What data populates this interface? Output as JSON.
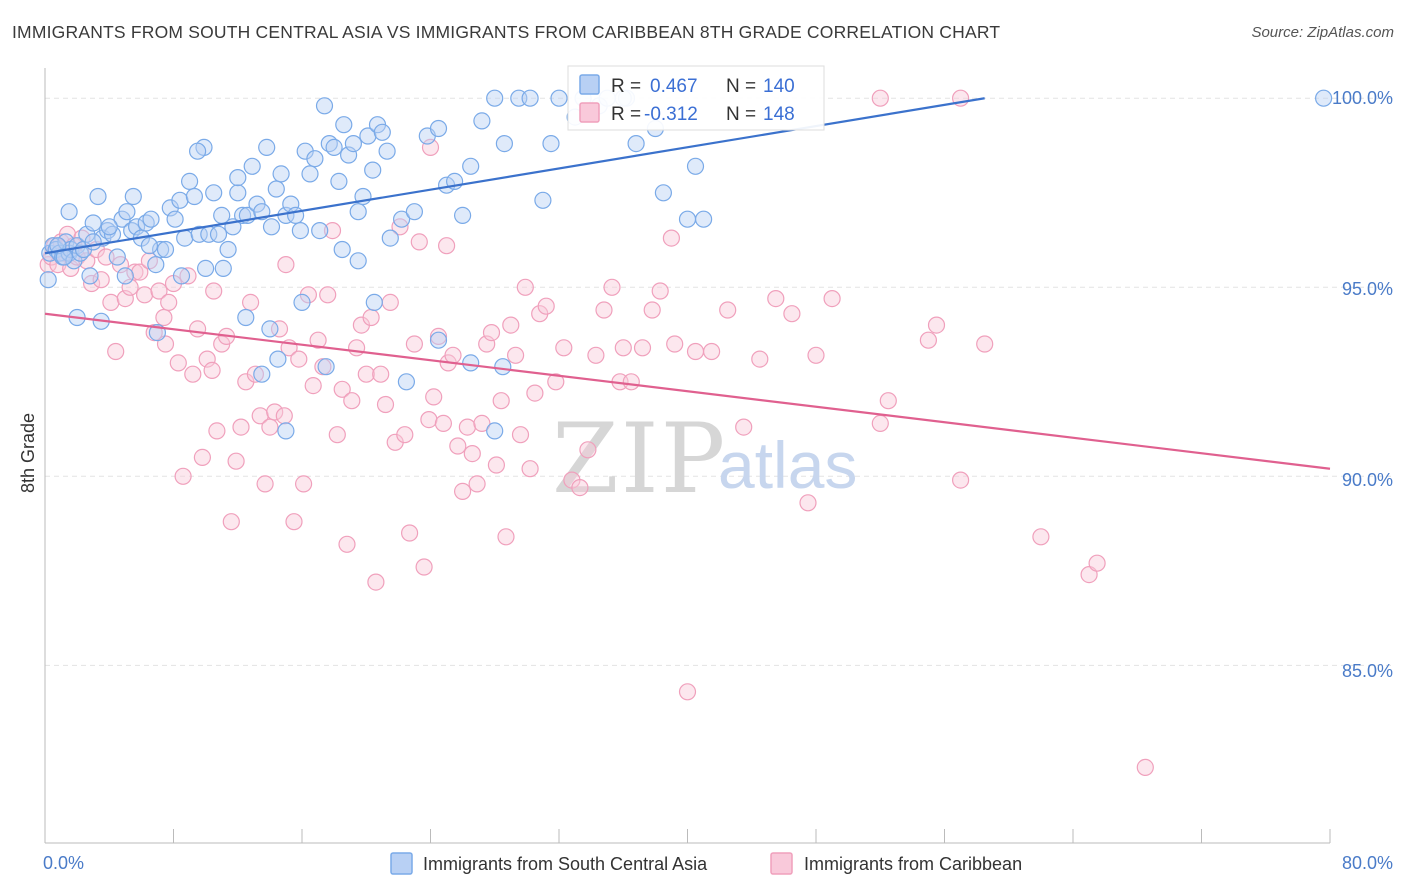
{
  "title": "IMMIGRANTS FROM SOUTH CENTRAL ASIA VS IMMIGRANTS FROM CARIBBEAN 8TH GRADE CORRELATION CHART",
  "source": "Source: ZipAtlas.com",
  "watermark": {
    "zip": "ZIP",
    "atlas": "atlas"
  },
  "colors": {
    "blue": "#7aaae8",
    "blue_line": "#3b72cc",
    "pink": "#f0a0bc",
    "pink_line": "#e0608f",
    "tick_text": "#4a7bc8",
    "grid": "#e3e3e3"
  },
  "legend": {
    "rows": [
      {
        "r_label": "R =",
        "r_value": "0.467",
        "n_label": "N =",
        "n_value": "140"
      },
      {
        "r_label": "R =",
        "r_value": "-0.312",
        "n_label": "N =",
        "n_value": "148"
      }
    ]
  },
  "chart_data": {
    "type": "scatter",
    "title": "IMMIGRANTS FROM SOUTH CENTRAL ASIA VS IMMIGRANTS FROM CARIBBEAN 8TH GRADE CORRELATION CHART",
    "xlabel": "",
    "ylabel": "8th Grade",
    "xlim": [
      0,
      80
    ],
    "ylim": [
      80.3,
      100.8
    ],
    "x_tick_labels": [
      "0.0%",
      "80.0%"
    ],
    "y_ticks": [
      85,
      90,
      95,
      100
    ],
    "y_tick_labels": [
      "85.0%",
      "90.0%",
      "95.0%",
      "100.0%"
    ],
    "grid": true,
    "legend_position": "top-center",
    "series": [
      {
        "name": "Immigrants from South Central Asia",
        "color": "#7aaae8",
        "trend": {
          "x0": 0,
          "y0": 95.9,
          "x1": 58.5,
          "y1": 100.0
        },
        "points": [
          [
            0.2,
            95.2
          ],
          [
            0.3,
            95.9
          ],
          [
            0.5,
            96.1
          ],
          [
            0.7,
            96.0
          ],
          [
            0.9,
            95.9
          ],
          [
            1.1,
            95.8
          ],
          [
            1.3,
            96.2
          ],
          [
            1.5,
            95.9
          ],
          [
            1.6,
            96.0
          ],
          [
            1.8,
            95.7
          ],
          [
            2.0,
            96.1
          ],
          [
            2.2,
            95.9
          ],
          [
            2.4,
            96.0
          ],
          [
            2.6,
            96.4
          ],
          [
            2.8,
            95.3
          ],
          [
            3.0,
            96.7
          ],
          [
            3.3,
            97.4
          ],
          [
            3.6,
            96.3
          ],
          [
            3.9,
            96.5
          ],
          [
            4.2,
            96.4
          ],
          [
            4.5,
            95.8
          ],
          [
            4.8,
            96.8
          ],
          [
            5.1,
            97.0
          ],
          [
            5.4,
            96.5
          ],
          [
            5.7,
            96.6
          ],
          [
            6.0,
            96.3
          ],
          [
            6.3,
            96.7
          ],
          [
            6.6,
            96.8
          ],
          [
            6.9,
            95.6
          ],
          [
            7.2,
            96.0
          ],
          [
            7.5,
            96.0
          ],
          [
            7.8,
            97.1
          ],
          [
            8.1,
            96.8
          ],
          [
            8.4,
            97.3
          ],
          [
            8.7,
            96.3
          ],
          [
            9.0,
            97.8
          ],
          [
            9.3,
            97.4
          ],
          [
            9.6,
            96.4
          ],
          [
            9.9,
            98.7
          ],
          [
            10.2,
            96.4
          ],
          [
            10.5,
            97.5
          ],
          [
            10.8,
            96.4
          ],
          [
            11.1,
            95.5
          ],
          [
            11.4,
            96.0
          ],
          [
            11.7,
            96.6
          ],
          [
            12.0,
            97.5
          ],
          [
            12.3,
            96.9
          ],
          [
            12.6,
            96.9
          ],
          [
            12.9,
            98.2
          ],
          [
            13.2,
            97.2
          ],
          [
            13.5,
            97.0
          ],
          [
            13.8,
            98.7
          ],
          [
            14.1,
            96.6
          ],
          [
            14.4,
            97.6
          ],
          [
            14.7,
            98.0
          ],
          [
            15.0,
            96.9
          ],
          [
            15.3,
            97.2
          ],
          [
            15.6,
            96.9
          ],
          [
            15.9,
            96.5
          ],
          [
            16.2,
            98.6
          ],
          [
            16.5,
            98.0
          ],
          [
            16.8,
            98.4
          ],
          [
            17.1,
            96.5
          ],
          [
            17.4,
            99.8
          ],
          [
            17.7,
            98.8
          ],
          [
            18.0,
            98.7
          ],
          [
            18.3,
            97.8
          ],
          [
            18.6,
            99.3
          ],
          [
            18.9,
            98.5
          ],
          [
            19.2,
            98.8
          ],
          [
            19.5,
            97.0
          ],
          [
            19.8,
            97.4
          ],
          [
            20.1,
            99.0
          ],
          [
            20.4,
            98.1
          ],
          [
            20.7,
            99.3
          ],
          [
            21.0,
            99.1
          ],
          [
            21.3,
            98.6
          ],
          [
            22.2,
            96.8
          ],
          [
            23.0,
            97.0
          ],
          [
            23.8,
            99.0
          ],
          [
            24.5,
            99.2
          ],
          [
            25.0,
            97.7
          ],
          [
            25.5,
            97.8
          ],
          [
            26.0,
            96.9
          ],
          [
            26.5,
            98.2
          ],
          [
            27.2,
            99.4
          ],
          [
            28.0,
            100.0
          ],
          [
            28.6,
            98.8
          ],
          [
            29.5,
            100.0
          ],
          [
            30.2,
            100.0
          ],
          [
            31.0,
            97.3
          ],
          [
            31.5,
            98.8
          ],
          [
            32.0,
            100.0
          ],
          [
            33.0,
            99.5
          ],
          [
            33.5,
            100.0
          ],
          [
            34.5,
            99.8
          ],
          [
            35.0,
            100.0
          ],
          [
            36.2,
            100.0
          ],
          [
            36.8,
            98.8
          ],
          [
            38.0,
            99.2
          ],
          [
            38.5,
            97.5
          ],
          [
            40.0,
            96.8
          ],
          [
            40.5,
            98.2
          ],
          [
            41.0,
            96.8
          ],
          [
            1.5,
            97.0
          ],
          [
            2.0,
            94.2
          ],
          [
            3.5,
            94.1
          ],
          [
            5.0,
            95.3
          ],
          [
            7.0,
            93.8
          ],
          [
            10.0,
            95.5
          ],
          [
            12.5,
            94.2
          ],
          [
            14.0,
            93.9
          ],
          [
            13.5,
            92.7
          ],
          [
            14.5,
            93.1
          ],
          [
            15.0,
            91.2
          ],
          [
            17.5,
            92.9
          ],
          [
            19.5,
            95.7
          ],
          [
            20.5,
            94.6
          ],
          [
            21.5,
            96.3
          ],
          [
            24.5,
            93.6
          ],
          [
            26.5,
            93.0
          ],
          [
            28.5,
            92.9
          ],
          [
            28.0,
            91.2
          ],
          [
            22.5,
            92.5
          ],
          [
            5.5,
            97.4
          ],
          [
            8.5,
            95.3
          ],
          [
            11.0,
            96.9
          ],
          [
            16.0,
            94.6
          ],
          [
            18.5,
            96.0
          ],
          [
            12.0,
            97.9
          ],
          [
            9.5,
            98.6
          ],
          [
            3.0,
            96.2
          ],
          [
            4.0,
            96.6
          ],
          [
            6.5,
            96.1
          ],
          [
            36.0,
            100.0
          ],
          [
            79.6,
            100.0
          ],
          [
            0.8,
            96.1
          ],
          [
            1.2,
            95.8
          ]
        ]
      },
      {
        "name": "Immigrants from Caribbean",
        "color": "#f0a0bc",
        "trend": {
          "x0": 0,
          "y0": 94.3,
          "x1": 80,
          "y1": 90.2
        },
        "points": [
          [
            0.2,
            95.6
          ],
          [
            0.4,
            95.8
          ],
          [
            0.6,
            96.1
          ],
          [
            0.8,
            95.6
          ],
          [
            1.0,
            96.2
          ],
          [
            1.2,
            95.9
          ],
          [
            1.4,
            96.4
          ],
          [
            1.6,
            95.5
          ],
          [
            1.8,
            96.1
          ],
          [
            2.0,
            95.8
          ],
          [
            2.3,
            96.3
          ],
          [
            2.6,
            95.7
          ],
          [
            2.9,
            95.1
          ],
          [
            3.2,
            96.0
          ],
          [
            3.5,
            95.2
          ],
          [
            3.8,
            95.8
          ],
          [
            4.1,
            94.6
          ],
          [
            4.4,
            93.3
          ],
          [
            4.7,
            95.6
          ],
          [
            5.0,
            94.7
          ],
          [
            5.3,
            95.0
          ],
          [
            5.6,
            95.4
          ],
          [
            5.9,
            95.4
          ],
          [
            6.2,
            94.8
          ],
          [
            6.5,
            95.7
          ],
          [
            6.8,
            93.8
          ],
          [
            7.1,
            94.9
          ],
          [
            7.4,
            94.2
          ],
          [
            7.7,
            94.6
          ],
          [
            8.0,
            95.1
          ],
          [
            8.3,
            93.0
          ],
          [
            8.6,
            90.0
          ],
          [
            8.9,
            95.3
          ],
          [
            9.2,
            92.7
          ],
          [
            9.5,
            93.9
          ],
          [
            9.8,
            90.5
          ],
          [
            10.1,
            93.1
          ],
          [
            10.4,
            92.8
          ],
          [
            10.7,
            91.2
          ],
          [
            11.0,
            93.5
          ],
          [
            11.3,
            93.7
          ],
          [
            11.6,
            88.8
          ],
          [
            11.9,
            90.4
          ],
          [
            12.2,
            91.3
          ],
          [
            12.5,
            92.5
          ],
          [
            12.8,
            94.6
          ],
          [
            13.1,
            92.7
          ],
          [
            13.4,
            91.6
          ],
          [
            13.7,
            89.8
          ],
          [
            14.0,
            91.3
          ],
          [
            14.3,
            91.7
          ],
          [
            14.6,
            93.9
          ],
          [
            14.9,
            91.6
          ],
          [
            15.2,
            93.4
          ],
          [
            15.5,
            88.8
          ],
          [
            15.8,
            93.1
          ],
          [
            16.1,
            89.8
          ],
          [
            16.4,
            94.8
          ],
          [
            16.7,
            92.4
          ],
          [
            17.0,
            93.6
          ],
          [
            17.3,
            92.9
          ],
          [
            17.6,
            94.8
          ],
          [
            17.9,
            96.5
          ],
          [
            18.2,
            91.1
          ],
          [
            18.5,
            92.3
          ],
          [
            18.8,
            88.2
          ],
          [
            19.1,
            92.0
          ],
          [
            19.4,
            93.4
          ],
          [
            19.7,
            94.0
          ],
          [
            20.0,
            92.7
          ],
          [
            20.3,
            94.2
          ],
          [
            20.6,
            87.2
          ],
          [
            20.9,
            92.7
          ],
          [
            21.2,
            91.9
          ],
          [
            21.5,
            94.6
          ],
          [
            21.8,
            90.9
          ],
          [
            22.1,
            96.6
          ],
          [
            22.4,
            91.1
          ],
          [
            22.7,
            88.5
          ],
          [
            23.0,
            93.5
          ],
          [
            23.3,
            96.2
          ],
          [
            23.6,
            87.6
          ],
          [
            23.9,
            91.5
          ],
          [
            24.2,
            92.1
          ],
          [
            24.5,
            93.7
          ],
          [
            24.8,
            91.4
          ],
          [
            25.1,
            93.0
          ],
          [
            25.4,
            93.2
          ],
          [
            25.7,
            90.8
          ],
          [
            26.0,
            89.6
          ],
          [
            26.3,
            91.3
          ],
          [
            26.6,
            90.6
          ],
          [
            26.9,
            89.8
          ],
          [
            27.2,
            91.4
          ],
          [
            27.5,
            93.5
          ],
          [
            27.8,
            93.8
          ],
          [
            28.1,
            90.3
          ],
          [
            28.4,
            92.0
          ],
          [
            28.7,
            88.4
          ],
          [
            29.0,
            94.0
          ],
          [
            29.3,
            93.2
          ],
          [
            29.6,
            91.1
          ],
          [
            29.9,
            95.0
          ],
          [
            30.2,
            90.2
          ],
          [
            30.5,
            92.2
          ],
          [
            30.8,
            94.3
          ],
          [
            31.2,
            94.5
          ],
          [
            31.8,
            92.5
          ],
          [
            32.3,
            93.4
          ],
          [
            32.8,
            89.9
          ],
          [
            33.3,
            89.7
          ],
          [
            33.8,
            90.7
          ],
          [
            34.3,
            93.2
          ],
          [
            34.8,
            94.4
          ],
          [
            35.3,
            95.0
          ],
          [
            35.8,
            92.5
          ],
          [
            36.5,
            92.5
          ],
          [
            37.2,
            93.4
          ],
          [
            37.8,
            94.4
          ],
          [
            38.3,
            94.9
          ],
          [
            39.2,
            93.5
          ],
          [
            40.0,
            84.3
          ],
          [
            40.5,
            93.3
          ],
          [
            41.5,
            93.3
          ],
          [
            42.5,
            94.4
          ],
          [
            43.5,
            91.3
          ],
          [
            44.5,
            93.1
          ],
          [
            45.5,
            94.7
          ],
          [
            46.5,
            94.3
          ],
          [
            47.5,
            89.3
          ],
          [
            48.0,
            93.2
          ],
          [
            49.0,
            94.7
          ],
          [
            52.0,
            91.4
          ],
          [
            52.5,
            92.0
          ],
          [
            55.0,
            93.6
          ],
          [
            55.5,
            94.0
          ],
          [
            57.0,
            89.9
          ],
          [
            58.5,
            93.5
          ],
          [
            62.0,
            88.4
          ],
          [
            65.0,
            87.4
          ],
          [
            65.5,
            87.7
          ],
          [
            68.5,
            82.3
          ],
          [
            7.5,
            93.5
          ],
          [
            15.0,
            95.6
          ],
          [
            25.0,
            96.1
          ],
          [
            39.0,
            96.3
          ],
          [
            52.0,
            100.0
          ],
          [
            57.0,
            100.0
          ],
          [
            24.0,
            98.7
          ],
          [
            36.0,
            93.4
          ],
          [
            10.5,
            94.9
          ]
        ]
      }
    ]
  }
}
